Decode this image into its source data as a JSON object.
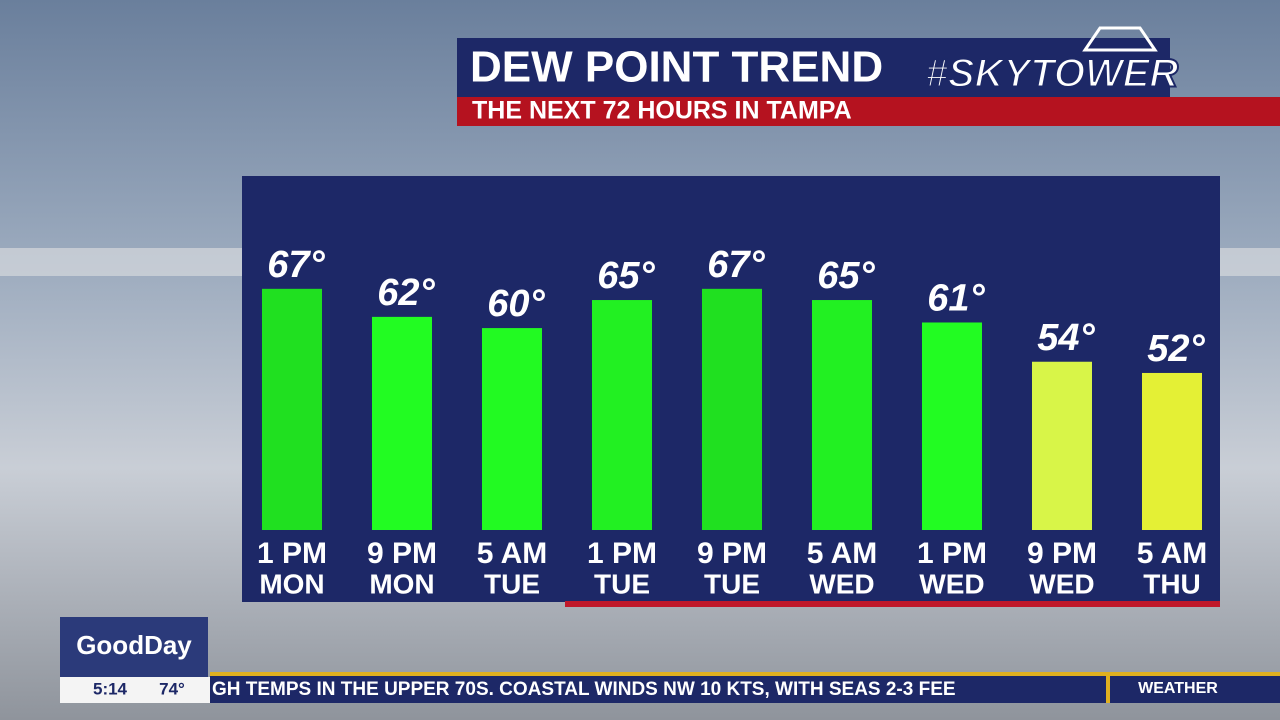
{
  "chart_data": {
    "type": "bar",
    "title": "DEW POINT TREND",
    "subtitle": "THE NEXT 72 HOURS IN TAMPA",
    "categories": [
      [
        "1 PM",
        "MON"
      ],
      [
        "9 PM",
        "MON"
      ],
      [
        "5 AM",
        "TUE"
      ],
      [
        "1 PM",
        "TUE"
      ],
      [
        "9 PM",
        "TUE"
      ],
      [
        "5 AM",
        "WED"
      ],
      [
        "1 PM",
        "WED"
      ],
      [
        "9 PM",
        "WED"
      ],
      [
        "5 AM",
        "THU"
      ]
    ],
    "values": [
      67,
      62,
      60,
      65,
      67,
      65,
      61,
      54,
      52
    ],
    "value_labels": [
      "67°",
      "62°",
      "60°",
      "65°",
      "67°",
      "65°",
      "61°",
      "54°",
      "52°"
    ],
    "colors": [
      "#20e020",
      "#22fc22",
      "#22fa22",
      "#22f022",
      "#20e020",
      "#22f022",
      "#22fc22",
      "#d8f548",
      "#e4f035"
    ],
    "ylim": [
      24,
      70
    ]
  },
  "branding": {
    "logo": "#SKYTOWER",
    "show": "GoodDay",
    "time": "5:14",
    "temperature": "74°",
    "ticker": "GH TEMPS IN THE UPPER 70S. COASTAL WINDS NW 10 KTS, WITH SEAS 2-3 FEE",
    "ticker_section": "WEATHER"
  }
}
